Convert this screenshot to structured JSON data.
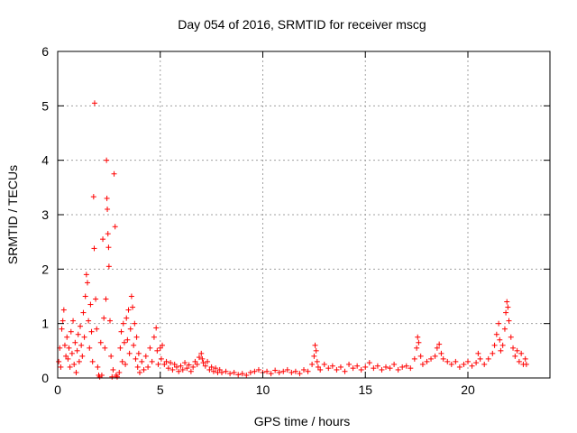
{
  "chart_data": {
    "type": "scatter",
    "title": "Day 054 of 2016, SRMTID for receiver mscg",
    "xlabel": "GPS time / hours",
    "ylabel": "SRMTID / TECUs",
    "xlim": [
      0,
      24
    ],
    "ylim": [
      0,
      6
    ],
    "xticks": [
      0,
      5,
      10,
      15,
      20
    ],
    "yticks": [
      0,
      1,
      2,
      3,
      4,
      5,
      6
    ],
    "x_tick_labels": [
      "0",
      "5",
      "10",
      "15",
      "20"
    ],
    "y_tick_labels": [
      "0",
      "1",
      "2",
      "3",
      "4",
      "5",
      "6"
    ],
    "grid": true,
    "marker": "+",
    "color": "#ff0000",
    "series": [
      {
        "name": "mscg",
        "points": [
          [
            0.05,
            0.3
          ],
          [
            0.1,
            0.55
          ],
          [
            0.15,
            0.2
          ],
          [
            0.2,
            0.9
          ],
          [
            0.25,
            1.05
          ],
          [
            0.3,
            1.25
          ],
          [
            0.35,
            0.6
          ],
          [
            0.4,
            0.4
          ],
          [
            0.45,
            0.75
          ],
          [
            0.5,
            0.35
          ],
          [
            0.55,
            0.55
          ],
          [
            0.6,
            0.2
          ],
          [
            0.65,
            0.85
          ],
          [
            0.7,
            0.45
          ],
          [
            0.75,
            1.05
          ],
          [
            0.8,
            0.25
          ],
          [
            0.85,
            0.65
          ],
          [
            0.9,
            0.1
          ],
          [
            0.95,
            0.5
          ],
          [
            1.0,
            0.8
          ],
          [
            1.05,
            0.3
          ],
          [
            1.1,
            0.95
          ],
          [
            1.15,
            0.6
          ],
          [
            1.2,
            0.4
          ],
          [
            1.25,
            1.2
          ],
          [
            1.3,
            0.75
          ],
          [
            1.35,
            1.5
          ],
          [
            1.4,
            1.9
          ],
          [
            1.45,
            1.75
          ],
          [
            1.5,
            1.05
          ],
          [
            1.55,
            0.55
          ],
          [
            1.6,
            1.35
          ],
          [
            1.65,
            0.85
          ],
          [
            1.7,
            0.3
          ],
          [
            1.75,
            3.33
          ],
          [
            1.78,
            2.38
          ],
          [
            1.8,
            5.05
          ],
          [
            1.85,
            1.45
          ],
          [
            1.9,
            0.9
          ],
          [
            1.95,
            0.2
          ],
          [
            2.0,
            0.05
          ],
          [
            2.05,
            0.02
          ],
          [
            2.1,
            0.65
          ],
          [
            2.15,
            0.05
          ],
          [
            2.2,
            2.55
          ],
          [
            2.25,
            1.1
          ],
          [
            2.3,
            0.55
          ],
          [
            2.35,
            1.45
          ],
          [
            2.38,
            4.0
          ],
          [
            2.4,
            3.3
          ],
          [
            2.42,
            3.1
          ],
          [
            2.45,
            2.65
          ],
          [
            2.48,
            2.4
          ],
          [
            2.5,
            2.05
          ],
          [
            2.55,
            1.05
          ],
          [
            2.6,
            0.4
          ],
          [
            2.65,
            0.02
          ],
          [
            2.7,
            0.15
          ],
          [
            2.75,
            3.75
          ],
          [
            2.8,
            2.78
          ],
          [
            2.85,
            0.05
          ],
          [
            2.9,
            0.02
          ],
          [
            3.0,
            0.1
          ],
          [
            3.05,
            0.55
          ],
          [
            3.1,
            0.85
          ],
          [
            3.15,
            0.3
          ],
          [
            3.2,
            1.0
          ],
          [
            3.25,
            0.65
          ],
          [
            3.3,
            0.25
          ],
          [
            3.35,
            1.1
          ],
          [
            3.4,
            0.7
          ],
          [
            3.45,
            1.25
          ],
          [
            3.5,
            0.45
          ],
          [
            3.55,
            0.9
          ],
          [
            3.6,
            1.5
          ],
          [
            3.65,
            1.3
          ],
          [
            3.7,
            0.6
          ],
          [
            3.75,
            1.0
          ],
          [
            3.8,
            0.35
          ],
          [
            3.85,
            0.75
          ],
          [
            3.9,
            0.2
          ],
          [
            3.95,
            0.45
          ],
          [
            4.0,
            0.1
          ],
          [
            4.1,
            0.3
          ],
          [
            4.2,
            0.15
          ],
          [
            4.3,
            0.4
          ],
          [
            4.4,
            0.2
          ],
          [
            4.5,
            0.55
          ],
          [
            4.6,
            0.3
          ],
          [
            4.7,
            0.75
          ],
          [
            4.8,
            0.92
          ],
          [
            4.85,
            0.5
          ],
          [
            4.9,
            0.25
          ],
          [
            5.0,
            0.55
          ],
          [
            5.05,
            0.35
          ],
          [
            5.1,
            0.6
          ],
          [
            5.2,
            0.25
          ],
          [
            5.3,
            0.3
          ],
          [
            5.4,
            0.18
          ],
          [
            5.5,
            0.28
          ],
          [
            5.6,
            0.15
          ],
          [
            5.7,
            0.25
          ],
          [
            5.8,
            0.2
          ],
          [
            5.9,
            0.12
          ],
          [
            6.0,
            0.22
          ],
          [
            6.1,
            0.15
          ],
          [
            6.2,
            0.28
          ],
          [
            6.3,
            0.18
          ],
          [
            6.4,
            0.24
          ],
          [
            6.5,
            0.12
          ],
          [
            6.6,
            0.2
          ],
          [
            6.7,
            0.3
          ],
          [
            6.8,
            0.25
          ],
          [
            6.9,
            0.38
          ],
          [
            7.0,
            0.45
          ],
          [
            7.05,
            0.35
          ],
          [
            7.1,
            0.28
          ],
          [
            7.2,
            0.22
          ],
          [
            7.3,
            0.3
          ],
          [
            7.4,
            0.15
          ],
          [
            7.5,
            0.2
          ],
          [
            7.6,
            0.12
          ],
          [
            7.7,
            0.18
          ],
          [
            7.8,
            0.1
          ],
          [
            7.9,
            0.15
          ],
          [
            8.0,
            0.1
          ],
          [
            8.2,
            0.12
          ],
          [
            8.4,
            0.08
          ],
          [
            8.6,
            0.1
          ],
          [
            8.8,
            0.06
          ],
          [
            9.0,
            0.08
          ],
          [
            9.2,
            0.05
          ],
          [
            9.4,
            0.1
          ],
          [
            9.6,
            0.12
          ],
          [
            9.8,
            0.15
          ],
          [
            10.0,
            0.1
          ],
          [
            10.2,
            0.12
          ],
          [
            10.4,
            0.08
          ],
          [
            10.6,
            0.14
          ],
          [
            10.8,
            0.1
          ],
          [
            11.0,
            0.12
          ],
          [
            11.2,
            0.15
          ],
          [
            11.4,
            0.1
          ],
          [
            11.6,
            0.12
          ],
          [
            11.8,
            0.08
          ],
          [
            12.0,
            0.15
          ],
          [
            12.2,
            0.12
          ],
          [
            12.4,
            0.25
          ],
          [
            12.5,
            0.4
          ],
          [
            12.55,
            0.6
          ],
          [
            12.6,
            0.5
          ],
          [
            12.65,
            0.3
          ],
          [
            12.7,
            0.2
          ],
          [
            12.8,
            0.15
          ],
          [
            13.0,
            0.25
          ],
          [
            13.2,
            0.18
          ],
          [
            13.4,
            0.22
          ],
          [
            13.6,
            0.15
          ],
          [
            13.8,
            0.2
          ],
          [
            14.0,
            0.12
          ],
          [
            14.2,
            0.25
          ],
          [
            14.4,
            0.18
          ],
          [
            14.6,
            0.22
          ],
          [
            14.8,
            0.15
          ],
          [
            15.0,
            0.2
          ],
          [
            15.2,
            0.28
          ],
          [
            15.4,
            0.18
          ],
          [
            15.6,
            0.22
          ],
          [
            15.8,
            0.15
          ],
          [
            16.0,
            0.2
          ],
          [
            16.2,
            0.18
          ],
          [
            16.4,
            0.25
          ],
          [
            16.6,
            0.15
          ],
          [
            16.8,
            0.2
          ],
          [
            17.0,
            0.22
          ],
          [
            17.2,
            0.18
          ],
          [
            17.4,
            0.35
          ],
          [
            17.5,
            0.55
          ],
          [
            17.55,
            0.75
          ],
          [
            17.6,
            0.65
          ],
          [
            17.7,
            0.4
          ],
          [
            17.8,
            0.25
          ],
          [
            18.0,
            0.3
          ],
          [
            18.2,
            0.35
          ],
          [
            18.4,
            0.4
          ],
          [
            18.5,
            0.55
          ],
          [
            18.6,
            0.62
          ],
          [
            18.7,
            0.45
          ],
          [
            18.8,
            0.35
          ],
          [
            19.0,
            0.3
          ],
          [
            19.2,
            0.25
          ],
          [
            19.4,
            0.3
          ],
          [
            19.6,
            0.2
          ],
          [
            19.8,
            0.25
          ],
          [
            20.0,
            0.3
          ],
          [
            20.2,
            0.22
          ],
          [
            20.4,
            0.28
          ],
          [
            20.5,
            0.45
          ],
          [
            20.6,
            0.35
          ],
          [
            20.8,
            0.25
          ],
          [
            21.0,
            0.35
          ],
          [
            21.2,
            0.45
          ],
          [
            21.3,
            0.6
          ],
          [
            21.4,
            0.8
          ],
          [
            21.5,
            1.0
          ],
          [
            21.55,
            0.7
          ],
          [
            21.6,
            0.5
          ],
          [
            21.7,
            0.6
          ],
          [
            21.8,
            0.9
          ],
          [
            21.85,
            1.2
          ],
          [
            21.9,
            1.4
          ],
          [
            21.95,
            1.3
          ],
          [
            22.0,
            1.05
          ],
          [
            22.1,
            0.75
          ],
          [
            22.2,
            0.55
          ],
          [
            22.3,
            0.4
          ],
          [
            22.4,
            0.5
          ],
          [
            22.5,
            0.3
          ],
          [
            22.6,
            0.45
          ],
          [
            22.7,
            0.25
          ],
          [
            22.8,
            0.35
          ],
          [
            22.85,
            0.25
          ]
        ]
      }
    ]
  }
}
